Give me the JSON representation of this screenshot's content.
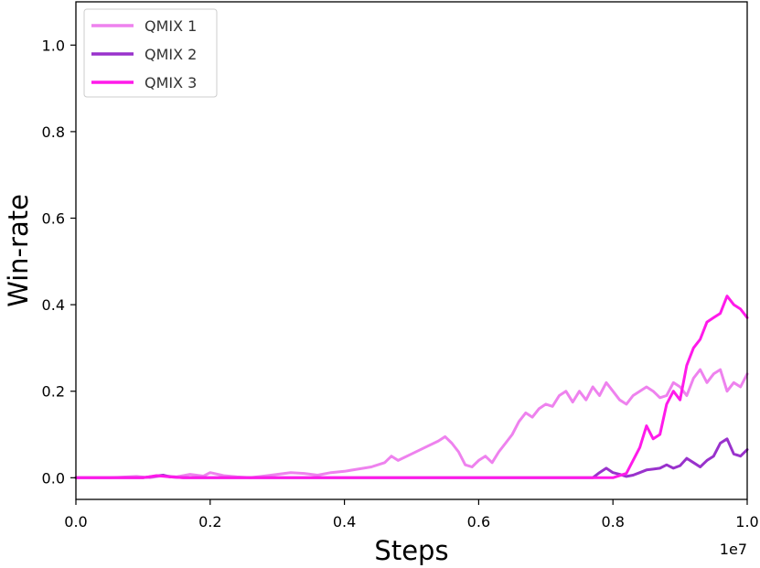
{
  "chart_data": {
    "type": "line",
    "xlabel": "Steps",
    "ylabel": "Win-rate",
    "x_offset_label": "1e7",
    "xlim": [
      0,
      1.0
    ],
    "ylim": [
      -0.05,
      1.1
    ],
    "xticks": [
      0.0,
      0.2,
      0.4,
      0.6,
      0.8,
      1.0
    ],
    "xtick_labels": [
      "0.0",
      "0.2",
      "0.4",
      "0.6",
      "0.8",
      "1.0"
    ],
    "yticks": [
      0.0,
      0.2,
      0.4,
      0.6,
      0.8,
      1.0
    ],
    "ytick_labels": [
      "0.0",
      "0.2",
      "0.4",
      "0.6",
      "0.8",
      "1.0"
    ],
    "grid": false,
    "legend_position": "top-left",
    "series": [
      {
        "name": "QMIX 1",
        "color": "#ee82ee",
        "x": [
          0.0,
          0.05,
          0.09,
          0.11,
          0.13,
          0.15,
          0.17,
          0.19,
          0.2,
          0.22,
          0.24,
          0.26,
          0.28,
          0.3,
          0.32,
          0.34,
          0.36,
          0.38,
          0.4,
          0.42,
          0.44,
          0.46,
          0.47,
          0.48,
          0.5,
          0.52,
          0.54,
          0.55,
          0.56,
          0.57,
          0.58,
          0.59,
          0.6,
          0.61,
          0.62,
          0.63,
          0.64,
          0.65,
          0.66,
          0.67,
          0.68,
          0.69,
          0.7,
          0.71,
          0.72,
          0.73,
          0.74,
          0.75,
          0.76,
          0.77,
          0.78,
          0.79,
          0.8,
          0.81,
          0.82,
          0.83,
          0.84,
          0.85,
          0.86,
          0.87,
          0.88,
          0.89,
          0.9,
          0.91,
          0.92,
          0.93,
          0.94,
          0.95,
          0.96,
          0.97,
          0.98,
          0.99,
          1.0
        ],
        "y": [
          0.0,
          0.0,
          0.003,
          0.0,
          0.005,
          0.002,
          0.008,
          0.004,
          0.012,
          0.005,
          0.002,
          0.0,
          0.004,
          0.008,
          0.012,
          0.01,
          0.006,
          0.012,
          0.015,
          0.02,
          0.025,
          0.035,
          0.05,
          0.04,
          0.055,
          0.07,
          0.085,
          0.095,
          0.08,
          0.06,
          0.03,
          0.025,
          0.04,
          0.05,
          0.035,
          0.06,
          0.08,
          0.1,
          0.13,
          0.15,
          0.14,
          0.16,
          0.17,
          0.165,
          0.19,
          0.2,
          0.175,
          0.2,
          0.18,
          0.21,
          0.19,
          0.22,
          0.2,
          0.18,
          0.17,
          0.19,
          0.2,
          0.21,
          0.2,
          0.185,
          0.19,
          0.22,
          0.21,
          0.19,
          0.23,
          0.25,
          0.22,
          0.24,
          0.25,
          0.2,
          0.22,
          0.21,
          0.24
        ]
      },
      {
        "name": "QMIX 2",
        "color": "#9932cc",
        "x": [
          0.0,
          0.1,
          0.13,
          0.14,
          0.16,
          0.2,
          0.4,
          0.6,
          0.77,
          0.78,
          0.79,
          0.8,
          0.81,
          0.82,
          0.83,
          0.84,
          0.85,
          0.86,
          0.87,
          0.88,
          0.89,
          0.9,
          0.91,
          0.92,
          0.93,
          0.94,
          0.95,
          0.96,
          0.97,
          0.98,
          0.99,
          1.0
        ],
        "y": [
          0.0,
          0.0,
          0.006,
          0.002,
          0.0,
          0.0,
          0.0,
          0.0,
          0.0,
          0.012,
          0.022,
          0.012,
          0.008,
          0.003,
          0.006,
          0.012,
          0.018,
          0.02,
          0.022,
          0.03,
          0.022,
          0.028,
          0.045,
          0.035,
          0.025,
          0.04,
          0.05,
          0.08,
          0.09,
          0.055,
          0.05,
          0.065
        ]
      },
      {
        "name": "QMIX 3",
        "color": "#ff1aea",
        "x": [
          0.0,
          0.1,
          0.12,
          0.14,
          0.16,
          0.2,
          0.4,
          0.6,
          0.8,
          0.82,
          0.83,
          0.84,
          0.85,
          0.86,
          0.87,
          0.88,
          0.89,
          0.9,
          0.91,
          0.92,
          0.93,
          0.94,
          0.95,
          0.96,
          0.97,
          0.98,
          0.99,
          1.0
        ],
        "y": [
          0.0,
          0.0,
          0.005,
          0.002,
          0.0,
          0.0,
          0.0,
          0.0,
          0.0,
          0.01,
          0.04,
          0.07,
          0.12,
          0.09,
          0.1,
          0.17,
          0.2,
          0.18,
          0.26,
          0.3,
          0.32,
          0.36,
          0.37,
          0.38,
          0.42,
          0.4,
          0.39,
          0.37
        ]
      }
    ]
  }
}
